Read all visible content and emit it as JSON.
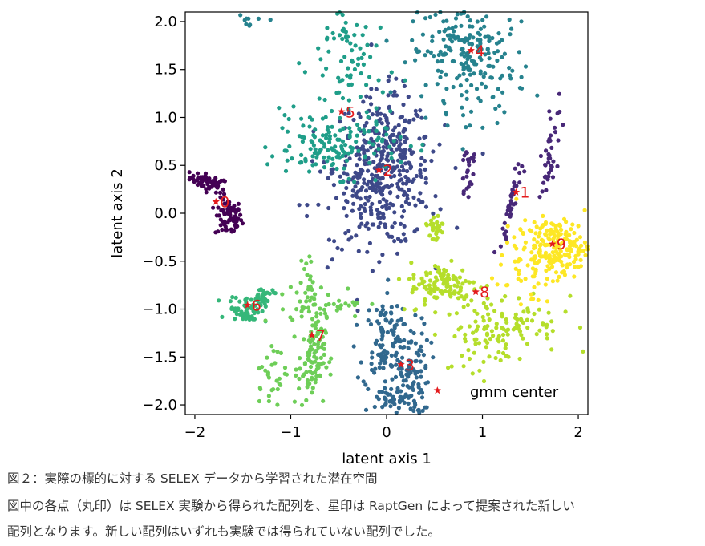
{
  "chart_data": {
    "type": "scatter",
    "xlabel": "latent axis 1",
    "ylabel": "latent axis 2",
    "xlim": [
      -2.1,
      2.1
    ],
    "ylim": [
      -2.1,
      2.1
    ],
    "x_ticks": [
      -2,
      -1,
      0,
      1,
      2
    ],
    "x_tick_labels": [
      "−2",
      "−1",
      "0",
      "1",
      "2"
    ],
    "y_ticks": [
      2.0,
      1.5,
      1.0,
      0.5,
      0.0,
      -0.5,
      -1.0,
      -1.5,
      -2.0
    ],
    "y_tick_labels": [
      "2.0",
      "1.5",
      "1.0",
      "0.5",
      "0.0",
      "−0.5",
      "−1.0",
      "−1.5",
      "−2.0"
    ],
    "grid": false,
    "colormap": "viridis",
    "clusters": [
      {
        "label": "0",
        "center": [
          -1.78,
          0.12
        ],
        "color": "#440154"
      },
      {
        "label": "1",
        "center": [
          1.35,
          0.22
        ],
        "color": "#482878"
      },
      {
        "label": "2",
        "center": [
          -0.08,
          0.45
        ],
        "color": "#3e4989"
      },
      {
        "label": "3",
        "center": [
          0.15,
          -1.58
        ],
        "color": "#31688e"
      },
      {
        "label": "4",
        "center": [
          0.88,
          1.7
        ],
        "color": "#26828e"
      },
      {
        "label": "5",
        "center": [
          -0.47,
          1.06
        ],
        "color": "#1f9e89"
      },
      {
        "label": "6",
        "center": [
          -1.45,
          -0.96
        ],
        "color": "#35b779"
      },
      {
        "label": "7",
        "center": [
          -0.78,
          -1.27
        ],
        "color": "#6ece58"
      },
      {
        "label": "8",
        "center": [
          0.93,
          -0.82
        ],
        "color": "#b5de2b"
      },
      {
        "label": "9",
        "center": [
          1.73,
          -0.32
        ],
        "color": "#fde725"
      }
    ],
    "extra_center": [
      0.53,
      -1.85
    ],
    "center_marker_color": "#e31a1c",
    "legend_text": "gmm center",
    "legend_position": "lower-right"
  },
  "caption": {
    "line1": "図２：実際の標的に対する SELEX データから学習された潜在空間",
    "line2": "図中の各点（丸印）は SELEX 実験から得られた配列を、星印は RaptGen によって提案された新しい",
    "line3": "配列となります。新しい配列はいずれも実験では得られていない配列でした。"
  }
}
